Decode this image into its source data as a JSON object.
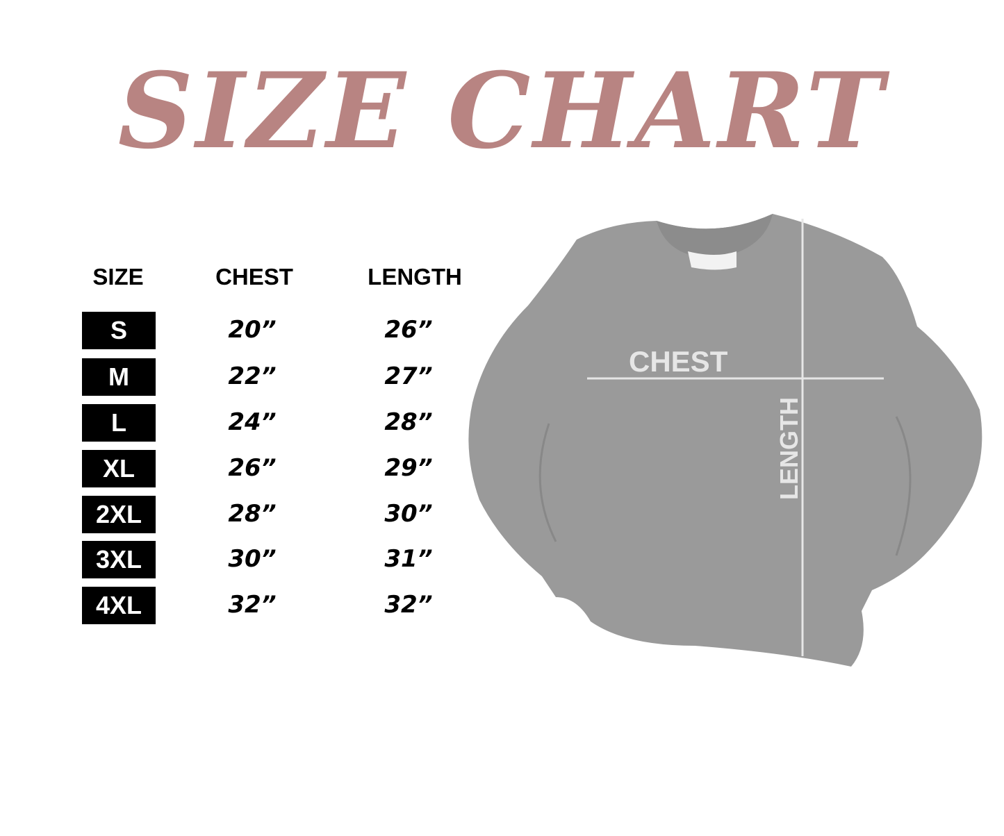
{
  "title": "SIZE CHART",
  "title_color": "#b88482",
  "table": {
    "headers": [
      "SIZE",
      "CHEST",
      "LENGTH"
    ],
    "rows": [
      {
        "size": "S",
        "chest": "20”",
        "length": "26”"
      },
      {
        "size": "M",
        "chest": "22”",
        "length": "27”"
      },
      {
        "size": "L",
        "chest": "24”",
        "length": "28”"
      },
      {
        "size": "XL",
        "chest": "26”",
        "length": "29”"
      },
      {
        "size": "2XL",
        "chest": "28”",
        "length": "30”"
      },
      {
        "size": "3XL",
        "chest": "30”",
        "length": "31”"
      },
      {
        "size": "4XL",
        "chest": "32”",
        "length": "32”"
      }
    ]
  },
  "diagram": {
    "chest_label": "CHEST",
    "length_label": "LENGTH",
    "garment_color": "#9a9a9a"
  }
}
